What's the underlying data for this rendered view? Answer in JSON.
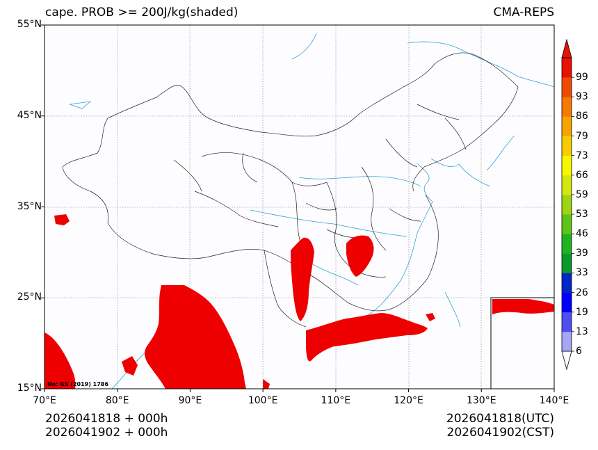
{
  "title_left": "cape. PROB >= 200J/kg(shaded)",
  "title_right": "CMA-REPS",
  "lat_labels": [
    "55°N",
    "45°N",
    "35°N",
    "25°N",
    "15°N"
  ],
  "lon_labels": [
    "70°E",
    "80°E",
    "90°E",
    "100°E",
    "110°E",
    "120°E",
    "130°E",
    "140°E"
  ],
  "colorbar": {
    "labels": [
      "6",
      "13",
      "19",
      "26",
      "33",
      "39",
      "46",
      "53",
      "59",
      "66",
      "73",
      "79",
      "86",
      "93",
      "99"
    ],
    "colors": [
      "#a6a6f5",
      "#4f4ff0",
      "#0000ff",
      "#0025c8",
      "#0a9a2a",
      "#1fb31f",
      "#5ec41a",
      "#9ed414",
      "#d4e80f",
      "#f7f700",
      "#f7cc00",
      "#f7a300",
      "#f77a00",
      "#f04a00",
      "#e81200"
    ]
  },
  "footer": {
    "left_line1": "2026041818  +  000h",
    "left_line2": "2026041902  +  000h",
    "right_line1": "2026041818(UTC)",
    "right_line2": "2026041902(CST)"
  },
  "map_note": "No: GS (2019) 1786",
  "colors": {
    "shade": "#ee0000",
    "coast": "#2fa0d8",
    "border": "#222222",
    "grid": "#777777"
  }
}
